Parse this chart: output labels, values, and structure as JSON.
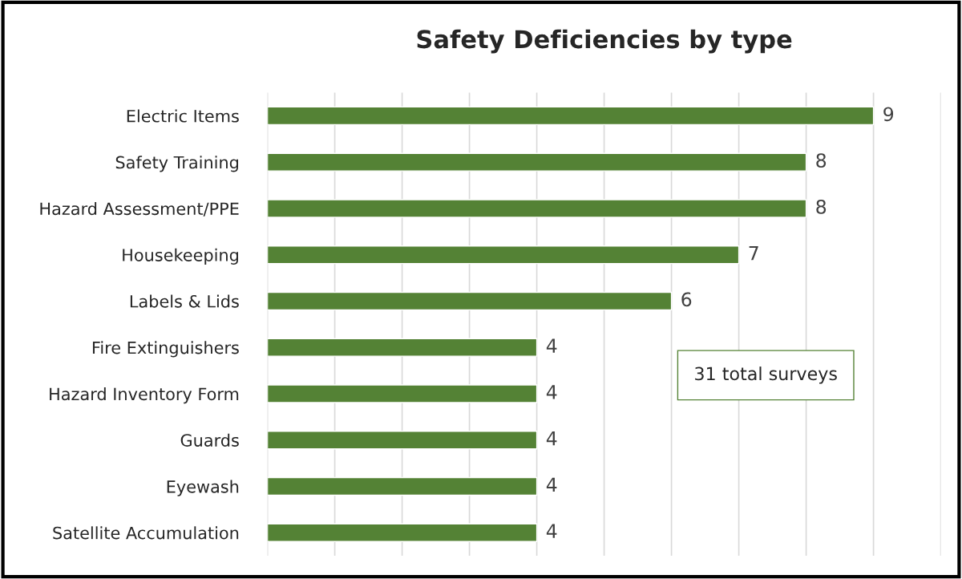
{
  "chart_data": {
    "type": "bar",
    "orientation": "horizontal",
    "title": "Safety Deficiencies by type",
    "categories": [
      "Electric Items",
      "Safety Training",
      "Hazard Assessment/PPE",
      "Housekeeping",
      "Labels & Lids",
      "Fire Extinguishers",
      "Hazard Inventory Form",
      "Guards",
      "Eyewash",
      "Satellite Accumulation"
    ],
    "values": [
      9,
      8,
      8,
      7,
      6,
      4,
      4,
      4,
      4,
      4
    ],
    "color": "#548235",
    "xlim": [
      0,
      10
    ],
    "xticks": [
      {
        "value": 0,
        "label": null
      },
      {
        "value": 1,
        "label": null
      },
      {
        "value": 2,
        "label": null
      },
      {
        "value": 3,
        "label": null
      },
      {
        "value": 4,
        "label": null
      },
      {
        "value": 5,
        "label": null
      },
      {
        "value": 6,
        "label": null
      },
      {
        "value": 7,
        "label": null
      },
      {
        "value": 8,
        "label": null
      },
      {
        "value": 9,
        "label": null
      },
      {
        "value": 10,
        "label": null
      }
    ],
    "grid": "x",
    "tick_labels": "y",
    "data_labels": true,
    "annotations": [
      "31 total surveys"
    ]
  }
}
